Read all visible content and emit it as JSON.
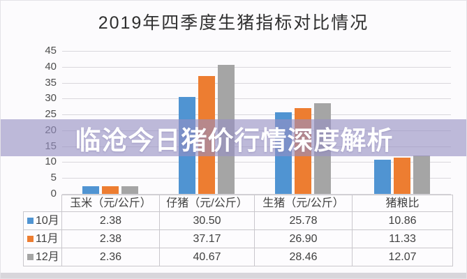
{
  "title": "2019年四季度生猪指标对比情况",
  "overlay": {
    "text": "临沧今日猪价行情深度解析"
  },
  "chart_data": {
    "type": "bar",
    "title": "2019年四季度生猪指标对比情况",
    "categories": [
      "玉米（元/公斤）",
      "仔猪（元/公斤）",
      "生猪（元/公斤）",
      "猪粮比"
    ],
    "series": [
      {
        "name": "10月",
        "color": "#5094D2",
        "values": [
          2.38,
          30.5,
          25.78,
          10.86
        ]
      },
      {
        "name": "11月",
        "color": "#ED7D31",
        "values": [
          2.38,
          37.17,
          26.9,
          11.33
        ]
      },
      {
        "name": "12月",
        "color": "#A5A5A5",
        "values": [
          2.36,
          40.67,
          28.46,
          12.07
        ]
      }
    ],
    "xlabel": "",
    "ylabel": "",
    "ylim": [
      0,
      45
    ],
    "ytick_step": 5,
    "grid": true,
    "legend_position": "table-rows"
  },
  "table": {
    "col_headers": [
      "玉米（元/公斤）",
      "仔猪（元/公斤）",
      "生猪（元/公斤）",
      "猪粮比"
    ],
    "rows": [
      {
        "label": "10月",
        "marker_color": "#5094D2",
        "values": [
          "2.38",
          "30.50",
          "25.78",
          "10.86"
        ]
      },
      {
        "label": "11月",
        "marker_color": "#ED7D31",
        "values": [
          "2.38",
          "37.17",
          "26.90",
          "11.33"
        ]
      },
      {
        "label": "12月",
        "marker_color": "#A5A5A5",
        "values": [
          "2.36",
          "40.67",
          "28.46",
          "12.07"
        ]
      }
    ]
  },
  "colors": {
    "banner_bg": "rgba(150,143,196,0.62)",
    "gridline": "#d9d7dc",
    "series_blue": "#5094D2",
    "series_orange": "#ED7D31",
    "series_gray": "#A5A5A5"
  }
}
